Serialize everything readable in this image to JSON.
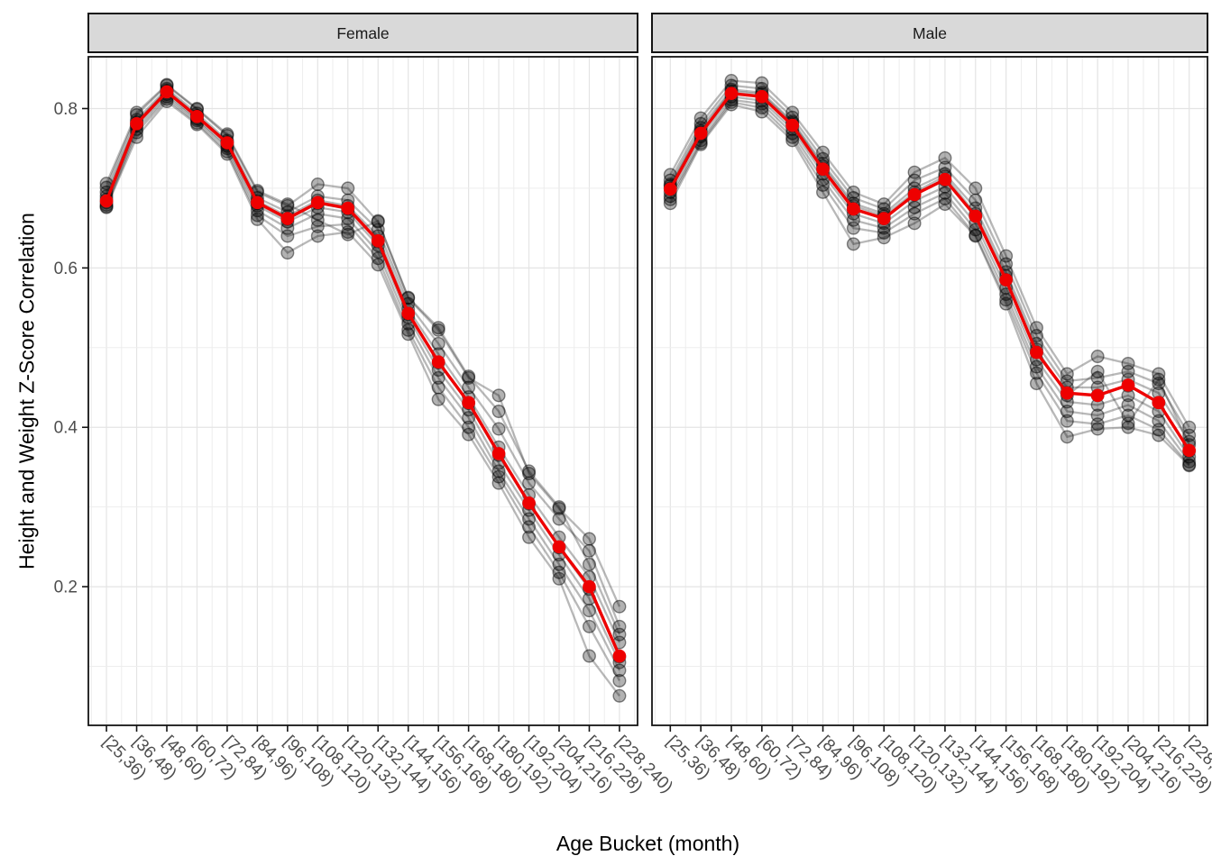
{
  "figure": {
    "x_axis_title": "Age Bucket (month)",
    "y_axis_title": "Height and Weight Z-Score Correlation"
  },
  "chart_data": {
    "type": "line",
    "title": "",
    "xlabel": "Age Bucket (month)",
    "ylabel": "Height and Weight Z-Score Correlation",
    "legend": "none",
    "grid": true,
    "y_ticks": [
      "0.2",
      "0.4",
      "0.6",
      "0.8"
    ],
    "y_tick_values": [
      0.2,
      0.4,
      0.6,
      0.8
    ],
    "ylim": [
      0.026,
      0.865
    ],
    "categories": [
      "[25,36)",
      "[36,48)",
      "[48,60)",
      "[60,72)",
      "[72,84)",
      "[84,96)",
      "[96,108)",
      "[108,120)",
      "[120,132)",
      "[132,144)",
      "[144,156)",
      "[156,168)",
      "[168,180)",
      "[180,192)",
      "[192,204)",
      "[204,216)",
      "[216,228)",
      "[228,240)"
    ],
    "styles": {
      "mean_color": "#ee0000",
      "individual_line_color": "rgba(0,0,0,0.28)",
      "individual_point_fill": "rgba(0,0,0,0.30)",
      "individual_point_stroke": "rgba(0,0,0,0.46)",
      "strip_fill": "#d9d9d9",
      "strip_text_color": "#1a1a1a",
      "panel_border_color": "#141414",
      "grid_major_color": "#e4e4e4",
      "grid_minor_color": "#ededed",
      "tick_color": "#141414",
      "tick_label_color": "#4d4d4d",
      "panel_background": "#ffffff"
    },
    "facets": [
      {
        "label": "Female",
        "mean_values": [
          0.684,
          0.781,
          0.821,
          0.79,
          0.757,
          0.682,
          0.662,
          0.682,
          0.675,
          0.634,
          0.543,
          0.482,
          0.431,
          0.367,
          0.305,
          0.25,
          0.2,
          0.113
        ],
        "individual_series": [
          [
            0.701,
            0.792,
            0.829,
            0.799,
            0.766,
            0.695,
            0.678,
            0.705,
            0.7,
            0.658,
            0.562,
            0.522,
            0.462,
            0.44,
            0.342,
            0.298,
            0.26,
            0.175
          ],
          [
            0.695,
            0.786,
            0.825,
            0.794,
            0.76,
            0.688,
            0.67,
            0.69,
            0.685,
            0.648,
            0.555,
            0.505,
            0.45,
            0.398,
            0.33,
            0.285,
            0.245,
            0.15
          ],
          [
            0.69,
            0.783,
            0.823,
            0.791,
            0.758,
            0.684,
            0.665,
            0.685,
            0.678,
            0.64,
            0.548,
            0.492,
            0.438,
            0.375,
            0.315,
            0.262,
            0.212,
            0.13
          ],
          [
            0.686,
            0.78,
            0.821,
            0.79,
            0.756,
            0.681,
            0.661,
            0.681,
            0.674,
            0.633,
            0.542,
            0.481,
            0.43,
            0.365,
            0.304,
            0.249,
            0.197,
            0.112
          ],
          [
            0.682,
            0.778,
            0.818,
            0.787,
            0.753,
            0.678,
            0.658,
            0.676,
            0.67,
            0.628,
            0.538,
            0.472,
            0.422,
            0.355,
            0.296,
            0.24,
            0.185,
            0.105
          ],
          [
            0.679,
            0.774,
            0.815,
            0.785,
            0.75,
            0.672,
            0.65,
            0.668,
            0.662,
            0.62,
            0.53,
            0.462,
            0.412,
            0.345,
            0.285,
            0.228,
            0.17,
            0.095
          ],
          [
            0.677,
            0.77,
            0.812,
            0.782,
            0.746,
            0.666,
            0.64,
            0.652,
            0.655,
            0.612,
            0.522,
            0.45,
            0.4,
            0.338,
            0.275,
            0.218,
            0.15,
            0.082
          ],
          [
            0.676,
            0.764,
            0.809,
            0.78,
            0.743,
            0.661,
            0.619,
            0.64,
            0.645,
            0.604,
            0.517,
            0.435,
            0.391,
            0.33,
            0.262,
            0.21,
            0.113,
            0.063
          ],
          [
            0.706,
            0.795,
            0.83,
            0.8,
            0.768,
            0.697,
            0.68,
            0.66,
            0.642,
            0.659,
            0.563,
            0.525,
            0.464,
            0.42,
            0.345,
            0.3,
            0.228,
            0.14
          ]
        ]
      },
      {
        "label": "Male",
        "mean_values": [
          0.699,
          0.769,
          0.819,
          0.815,
          0.779,
          0.724,
          0.674,
          0.662,
          0.692,
          0.711,
          0.665,
          0.585,
          0.494,
          0.443,
          0.44,
          0.453,
          0.431,
          0.371
        ],
        "individual_series": [
          [
            0.717,
            0.788,
            0.835,
            0.832,
            0.795,
            0.745,
            0.695,
            0.68,
            0.72,
            0.738,
            0.7,
            0.615,
            0.525,
            0.467,
            0.489,
            0.48,
            0.467,
            0.4
          ],
          [
            0.71,
            0.781,
            0.829,
            0.825,
            0.789,
            0.737,
            0.688,
            0.674,
            0.71,
            0.726,
            0.685,
            0.605,
            0.515,
            0.458,
            0.462,
            0.47,
            0.455,
            0.39
          ],
          [
            0.705,
            0.776,
            0.824,
            0.82,
            0.784,
            0.731,
            0.681,
            0.668,
            0.7,
            0.718,
            0.675,
            0.595,
            0.505,
            0.45,
            0.45,
            0.46,
            0.443,
            0.382
          ],
          [
            0.7,
            0.77,
            0.819,
            0.815,
            0.779,
            0.724,
            0.674,
            0.662,
            0.692,
            0.71,
            0.665,
            0.585,
            0.494,
            0.443,
            0.44,
            0.452,
            0.431,
            0.37
          ],
          [
            0.695,
            0.765,
            0.815,
            0.81,
            0.774,
            0.718,
            0.668,
            0.656,
            0.684,
            0.702,
            0.656,
            0.575,
            0.485,
            0.432,
            0.428,
            0.44,
            0.42,
            0.363
          ],
          [
            0.69,
            0.76,
            0.811,
            0.806,
            0.769,
            0.711,
            0.66,
            0.65,
            0.676,
            0.694,
            0.648,
            0.567,
            0.476,
            0.42,
            0.415,
            0.428,
            0.408,
            0.357
          ],
          [
            0.686,
            0.757,
            0.808,
            0.801,
            0.764,
            0.704,
            0.65,
            0.644,
            0.668,
            0.687,
            0.641,
            0.56,
            0.468,
            0.408,
            0.404,
            0.415,
            0.397,
            0.353
          ],
          [
            0.681,
            0.755,
            0.805,
            0.796,
            0.76,
            0.695,
            0.63,
            0.638,
            0.656,
            0.68,
            0.64,
            0.555,
            0.455,
            0.388,
            0.398,
            0.4,
            0.39,
            0.352
          ],
          [
            0.703,
            0.772,
            0.822,
            0.818,
            0.782,
            0.728,
            0.678,
            0.665,
            0.695,
            0.715,
            0.668,
            0.59,
            0.498,
            0.44,
            0.47,
            0.405,
            0.46,
            0.378
          ]
        ]
      }
    ]
  }
}
